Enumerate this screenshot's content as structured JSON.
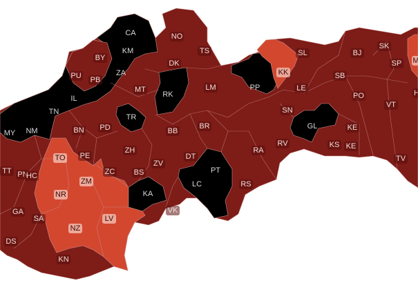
{
  "colors": {
    "high": "#7e1c18",
    "very_high": "#000000",
    "medium": "#d3472f",
    "border": "#c9928c",
    "label_text_dark_bg": "#f2dcd6",
    "label_text_light_bg": "#3a0e0b"
  },
  "districts": [
    {
      "code": "CA",
      "level": "very_high"
    },
    {
      "code": "KM",
      "level": "very_high"
    },
    {
      "code": "ZA",
      "level": "very_high"
    },
    {
      "code": "NO",
      "level": "high"
    },
    {
      "code": "TS",
      "level": "high"
    },
    {
      "code": "BY",
      "level": "high"
    },
    {
      "code": "PU",
      "level": "high"
    },
    {
      "code": "PB",
      "level": "high"
    },
    {
      "code": "DK",
      "level": "high"
    },
    {
      "code": "IL",
      "level": "very_high"
    },
    {
      "code": "MT",
      "level": "high"
    },
    {
      "code": "RK",
      "level": "very_high"
    },
    {
      "code": "LM",
      "level": "high"
    },
    {
      "code": "PP",
      "level": "very_high"
    },
    {
      "code": "KK",
      "level": "medium"
    },
    {
      "code": "SL",
      "level": "high"
    },
    {
      "code": "BJ",
      "level": "high"
    },
    {
      "code": "SK",
      "level": "high"
    },
    {
      "code": "SP",
      "level": "high"
    },
    {
      "code": "M",
      "level": "medium"
    },
    {
      "code": "SB",
      "level": "high"
    },
    {
      "code": "LE",
      "level": "high"
    },
    {
      "code": "PO",
      "level": "high"
    },
    {
      "code": "H",
      "level": "high"
    },
    {
      "code": "TN",
      "level": "very_high"
    },
    {
      "code": "TR",
      "level": "very_high"
    },
    {
      "code": "SN",
      "level": "high"
    },
    {
      "code": "VT",
      "level": "high"
    },
    {
      "code": "MY",
      "level": "very_high"
    },
    {
      "code": "NM",
      "level": "very_high"
    },
    {
      "code": "BN",
      "level": "high"
    },
    {
      "code": "PD",
      "level": "high"
    },
    {
      "code": "BB",
      "level": "high"
    },
    {
      "code": "BR",
      "level": "high"
    },
    {
      "code": "GL",
      "level": "very_high"
    },
    {
      "code": "KE",
      "level": "high"
    },
    {
      "code": "KE",
      "level": "high"
    },
    {
      "code": "KS",
      "level": "high"
    },
    {
      "code": "RV",
      "level": "high"
    },
    {
      "code": "RA",
      "level": "high"
    },
    {
      "code": "TO",
      "level": "medium"
    },
    {
      "code": "PE",
      "level": "high"
    },
    {
      "code": "ZH",
      "level": "high"
    },
    {
      "code": "DT",
      "level": "high"
    },
    {
      "code": "PN",
      "level": "high"
    },
    {
      "code": "TT",
      "level": "high"
    },
    {
      "code": "HC",
      "level": "high"
    },
    {
      "code": "ZM",
      "level": "medium"
    },
    {
      "code": "ZC",
      "level": "high"
    },
    {
      "code": "BS",
      "level": "high"
    },
    {
      "code": "ZV",
      "level": "high"
    },
    {
      "code": "PT",
      "level": "very_high"
    },
    {
      "code": "LC",
      "level": "very_high"
    },
    {
      "code": "TV",
      "level": "high"
    },
    {
      "code": "NR",
      "level": "medium"
    },
    {
      "code": "KA",
      "level": "very_high"
    },
    {
      "code": "RS",
      "level": "high"
    },
    {
      "code": "GA",
      "level": "high"
    },
    {
      "code": "SA",
      "level": "high"
    },
    {
      "code": "LV",
      "level": "medium"
    },
    {
      "code": "VK",
      "level": "high"
    },
    {
      "code": "NZ",
      "level": "medium"
    },
    {
      "code": "DS",
      "level": "high"
    },
    {
      "code": "KN",
      "level": "high"
    }
  ]
}
